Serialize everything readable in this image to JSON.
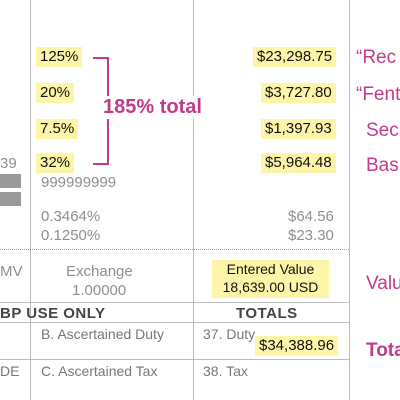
{
  "rates": [
    "125%",
    "20%",
    "7.5%",
    "32%"
  ],
  "rate_total": "185% total",
  "amounts": [
    "$23,298.75",
    "$3,727.80",
    "$1,397.93",
    "$5,964.48"
  ],
  "left_fragment": "39",
  "code": "999999999",
  "small_rates": [
    "0.3464%",
    "0.1250%"
  ],
  "small_amounts": [
    "$64.56",
    "$23.30"
  ],
  "row_mv": "MV",
  "exchange_label": "Exchange",
  "exchange_value": "1.00000",
  "entered_value_label": "Entered Value",
  "entered_value": "18,639.00 USD",
  "cbp_header": "BP USE ONLY",
  "totals_header": "TOTALS",
  "ascertained_duty": "B. Ascertained Duty",
  "duty_label": "37. Duty",
  "duty_value": "$34,388.96",
  "ascertained_tax": "C. Ascertained Tax",
  "tax_label": "38. Tax",
  "left_bottom_fragment": "DE",
  "annotations": [
    "“Rec",
    "“Fent",
    "Sec",
    "Bas",
    "Valu",
    "Tota"
  ]
}
